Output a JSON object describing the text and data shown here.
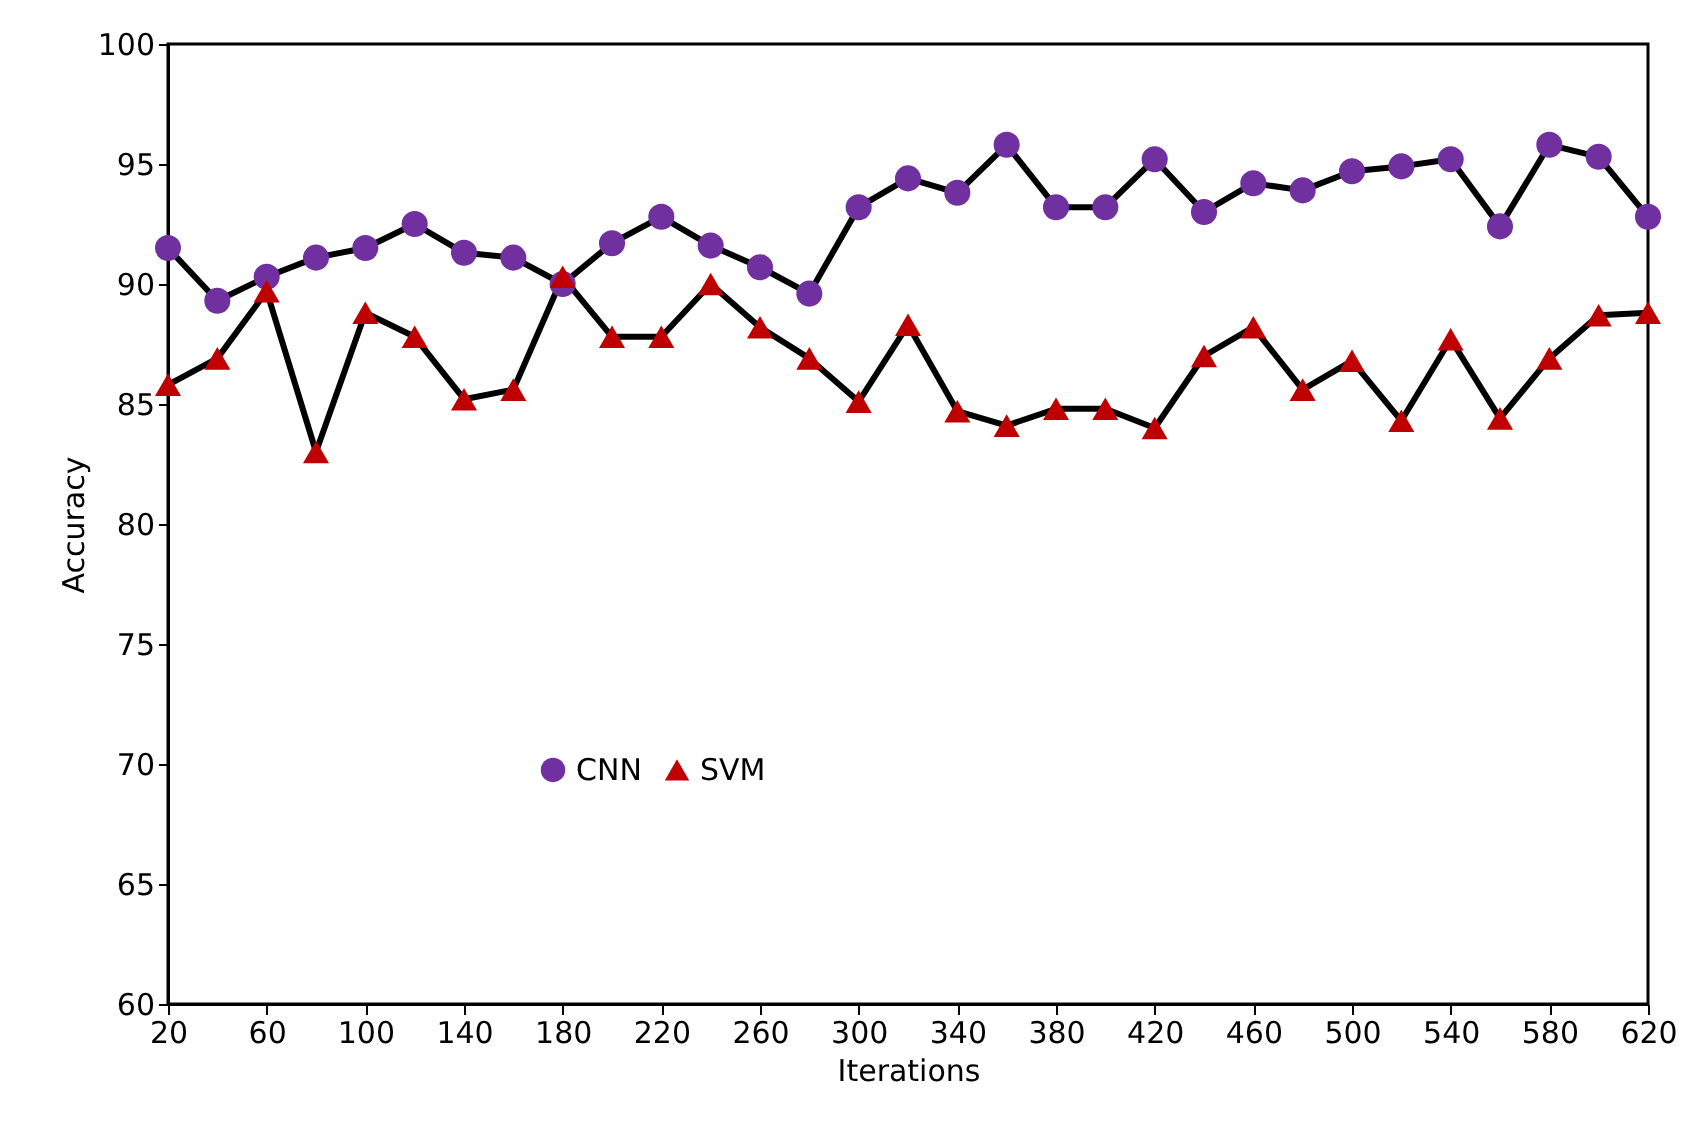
{
  "chart_data": {
    "type": "line",
    "xlabel": "Iterations",
    "ylabel": "Accuracy",
    "x": [
      20,
      40,
      60,
      80,
      100,
      120,
      140,
      160,
      180,
      200,
      220,
      240,
      260,
      280,
      300,
      320,
      340,
      360,
      380,
      400,
      420,
      440,
      460,
      480,
      500,
      520,
      540,
      560,
      580,
      600,
      620
    ],
    "series": [
      {
        "name": "CNN",
        "color": "#7030a0",
        "marker": "circle",
        "values": [
          91.5,
          89.3,
          90.3,
          91.1,
          91.5,
          92.5,
          91.3,
          91.1,
          90.0,
          91.7,
          92.8,
          91.6,
          90.7,
          89.6,
          93.2,
          94.4,
          93.8,
          95.8,
          93.2,
          93.2,
          95.2,
          93.0,
          94.2,
          93.9,
          94.7,
          94.9,
          95.2,
          92.4,
          95.8,
          95.3,
          92.8
        ]
      },
      {
        "name": "SVM",
        "color": "#c00000",
        "marker": "triangle",
        "values": [
          85.8,
          86.9,
          89.7,
          83.0,
          88.8,
          87.8,
          85.2,
          85.6,
          90.3,
          87.8,
          87.8,
          90.0,
          88.2,
          86.9,
          85.1,
          88.3,
          84.7,
          84.1,
          84.8,
          84.8,
          84.0,
          87.0,
          88.2,
          85.6,
          86.8,
          84.3,
          87.7,
          84.4,
          86.9,
          88.7,
          88.8
        ]
      }
    ],
    "xlim": [
      20,
      620
    ],
    "xticks": [
      20,
      60,
      100,
      140,
      180,
      220,
      260,
      300,
      340,
      380,
      420,
      460,
      500,
      540,
      580,
      620
    ],
    "ylim": [
      60,
      100
    ],
    "yticks": [
      60,
      65,
      70,
      75,
      80,
      85,
      90,
      95,
      100
    ],
    "grid": false,
    "legend": "bottom left",
    "line_style": "solid"
  }
}
